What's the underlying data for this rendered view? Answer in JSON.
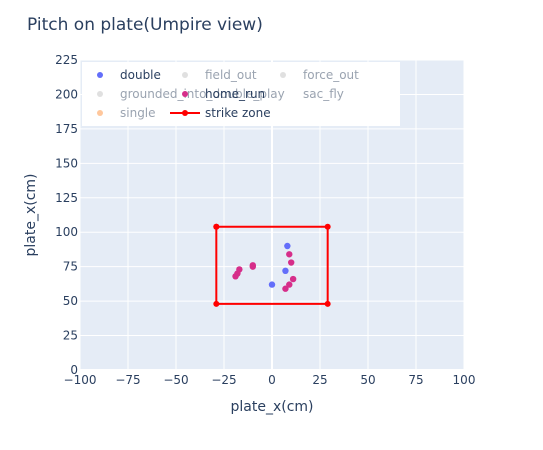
{
  "chart_data": {
    "type": "scatter",
    "title": "Pitch on plate(Umpire view)",
    "xlabel": "plate_x(cm)",
    "ylabel": "plate_x(cm)",
    "xlim": [
      -100,
      100
    ],
    "ylim": [
      0,
      225
    ],
    "xticks": [
      "−100",
      "−75",
      "−50",
      "−25",
      "0",
      "25",
      "50",
      "75",
      "100"
    ],
    "xtick_values": [
      -100,
      -75,
      -50,
      -25,
      0,
      25,
      50,
      75,
      100
    ],
    "yticks": [
      "0",
      "25",
      "50",
      "75",
      "100",
      "125",
      "150",
      "175",
      "200",
      "225"
    ],
    "ytick_values": [
      0,
      25,
      50,
      75,
      100,
      125,
      150,
      175,
      200,
      225
    ],
    "grid": true,
    "legend_position": "top",
    "series": [
      {
        "name": "double",
        "color": "#636efa",
        "marker": "circle",
        "active": true,
        "x": [
          8,
          7,
          0
        ],
        "y": [
          90,
          72,
          62
        ]
      },
      {
        "name": "field_out",
        "color": "#cccccc",
        "marker": "circle",
        "active": false,
        "x": [],
        "y": []
      },
      {
        "name": "force_out",
        "color": "#cccccc",
        "marker": "circle",
        "active": false,
        "x": [],
        "y": []
      },
      {
        "name": "grounded_into_double_play",
        "color": "#cccccc",
        "marker": "circle",
        "active": false,
        "x": [],
        "y": []
      },
      {
        "name": "home_run",
        "color": "#d62e8a",
        "marker": "circle",
        "active": true,
        "x": [
          -19,
          -18,
          -17,
          -10,
          -10,
          9,
          10,
          11,
          9,
          7
        ],
        "y": [
          68,
          70,
          73,
          76,
          75,
          84,
          78,
          66,
          62,
          59
        ]
      },
      {
        "name": "sac_fly",
        "color": "#cccccc",
        "marker": "none",
        "active": false,
        "x": [],
        "y": []
      },
      {
        "name": "single",
        "color": "#ffa15a",
        "marker": "circle",
        "active": false,
        "x": [],
        "y": []
      },
      {
        "name": "strike zone",
        "color": "#ff0000",
        "marker": "line",
        "active": true,
        "x": [
          -29,
          29,
          29,
          -29,
          -29
        ],
        "y": [
          104,
          104,
          48,
          48,
          104
        ]
      }
    ]
  }
}
